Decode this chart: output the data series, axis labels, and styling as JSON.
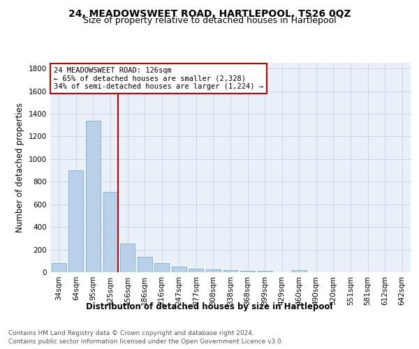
{
  "title": "24, MEADOWSWEET ROAD, HARTLEPOOL, TS26 0QZ",
  "subtitle": "Size of property relative to detached houses in Hartlepool",
  "xlabel": "Distribution of detached houses by size in Hartlepool",
  "ylabel": "Number of detached properties",
  "categories": [
    "34sqm",
    "64sqm",
    "95sqm",
    "125sqm",
    "156sqm",
    "186sqm",
    "216sqm",
    "247sqm",
    "277sqm",
    "308sqm",
    "338sqm",
    "368sqm",
    "399sqm",
    "429sqm",
    "460sqm",
    "490sqm",
    "520sqm",
    "551sqm",
    "581sqm",
    "612sqm",
    "642sqm"
  ],
  "values": [
    80,
    900,
    1340,
    710,
    250,
    135,
    80,
    50,
    30,
    25,
    20,
    15,
    10,
    0,
    20,
    0,
    0,
    0,
    0,
    0,
    0
  ],
  "bar_color": "#b8d0e8",
  "bar_edge_color": "#7aafd4",
  "vline_color": "#cc0000",
  "annotation_text": "24 MEADOWSWEET ROAD: 126sqm\n← 65% of detached houses are smaller (2,328)\n34% of semi-detached houses are larger (1,224) →",
  "annotation_box_color": "#cc0000",
  "annotation_bg_color": "#ffffff",
  "ylim": [
    0,
    1850
  ],
  "yticks": [
    0,
    200,
    400,
    600,
    800,
    1000,
    1200,
    1400,
    1600,
    1800
  ],
  "footer_line1": "Contains HM Land Registry data © Crown copyright and database right 2024.",
  "footer_line2": "Contains public sector information licensed under the Open Government Licence v3.0.",
  "bg_color": "#ffffff",
  "plot_bg_color": "#eaf0f8",
  "grid_color": "#c8d0dc",
  "title_fontsize": 10,
  "subtitle_fontsize": 9,
  "axis_label_fontsize": 8.5,
  "tick_fontsize": 7.5,
  "annotation_fontsize": 7.5,
  "footer_fontsize": 6.5
}
